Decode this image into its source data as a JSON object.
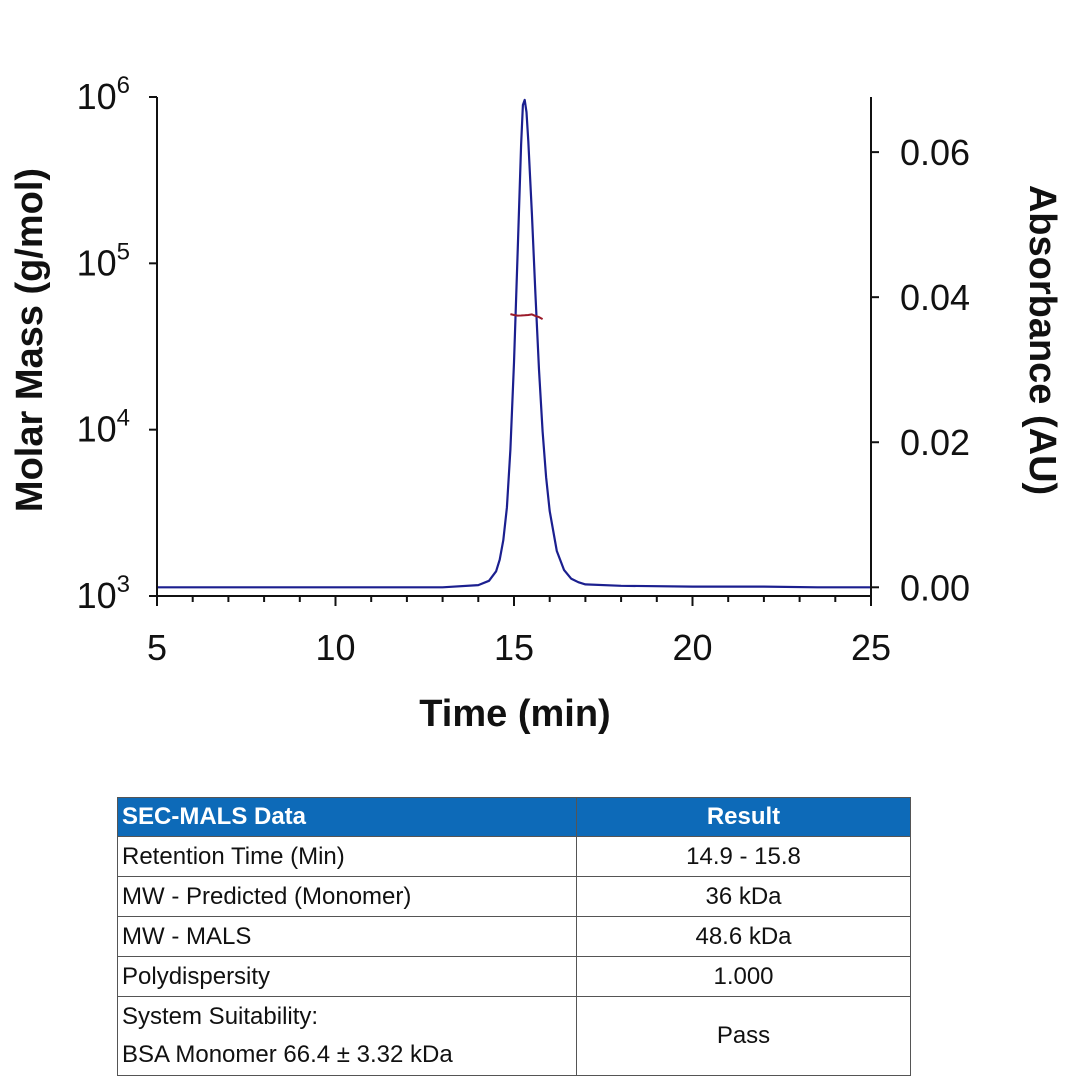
{
  "chart_data": {
    "type": "line",
    "xlabel": "Time (min)",
    "ylabel": "Molar Mass (g/mol)",
    "y2label": "Absorbance (AU)",
    "xlim": [
      5,
      25
    ],
    "ylim": [
      1000,
      1000000
    ],
    "y_scale": "log",
    "y2lim": [
      -0.0012,
      0.0676
    ],
    "x_ticks": [
      "5",
      "10",
      "15",
      "20",
      "25"
    ],
    "y_ticks": [
      {
        "base": "10",
        "exp": "3",
        "value": 1000
      },
      {
        "base": "10",
        "exp": "4",
        "value": 10000
      },
      {
        "base": "10",
        "exp": "5",
        "value": 100000
      },
      {
        "base": "10",
        "exp": "6",
        "value": 1000000
      }
    ],
    "y2_ticks": [
      "0.00",
      "0.02",
      "0.04",
      "0.06"
    ],
    "series": [
      {
        "axis": "right",
        "color": "#1b1f8f",
        "x": [
          5.0,
          8.0,
          11.0,
          13.0,
          14.0,
          14.3,
          14.5,
          14.6,
          14.7,
          14.8,
          14.9,
          15.0,
          15.1,
          15.2,
          15.25,
          15.3,
          15.35,
          15.4,
          15.5,
          15.6,
          15.7,
          15.8,
          15.9,
          16.0,
          16.2,
          16.4,
          16.6,
          16.8,
          17.0,
          18.0,
          20.0,
          22.0,
          23.5,
          24.0,
          25.0
        ],
        "values": [
          0.0,
          0.0,
          0.0,
          0.0,
          0.0003,
          0.0009,
          0.0022,
          0.0038,
          0.0065,
          0.011,
          0.019,
          0.031,
          0.046,
          0.061,
          0.0665,
          0.0672,
          0.0655,
          0.0615,
          0.0515,
          0.0405,
          0.03,
          0.0215,
          0.0152,
          0.0105,
          0.005,
          0.0024,
          0.0012,
          0.0007,
          0.0004,
          0.0002,
          0.0001,
          0.0001,
          0.0,
          0.0,
          0.0
        ]
      },
      {
        "axis": "left",
        "color": "#9b1b2a",
        "x": [
          14.9,
          15.0,
          15.1,
          15.2,
          15.3,
          15.4,
          15.5,
          15.6,
          15.7,
          15.8
        ],
        "values": [
          49500,
          48900,
          48500,
          48600,
          48700,
          48900,
          49300,
          48300,
          47500,
          46200
        ]
      }
    ]
  },
  "table": {
    "headers": [
      "SEC-MALS Data",
      "Result"
    ],
    "rows": [
      {
        "param": "Retention Time (Min)",
        "value": "14.9 - 15.8"
      },
      {
        "param": "MW - Predicted (Monomer)",
        "value": "36 kDa"
      },
      {
        "param": "MW - MALS",
        "value": "48.6 kDa"
      },
      {
        "param": "Polydispersity",
        "value": "1.000"
      }
    ],
    "last_row": {
      "param_line1": "System Suitability:",
      "param_line2": "BSA Monomer 66.4 ± 3.32 kDa",
      "value": "Pass"
    }
  }
}
